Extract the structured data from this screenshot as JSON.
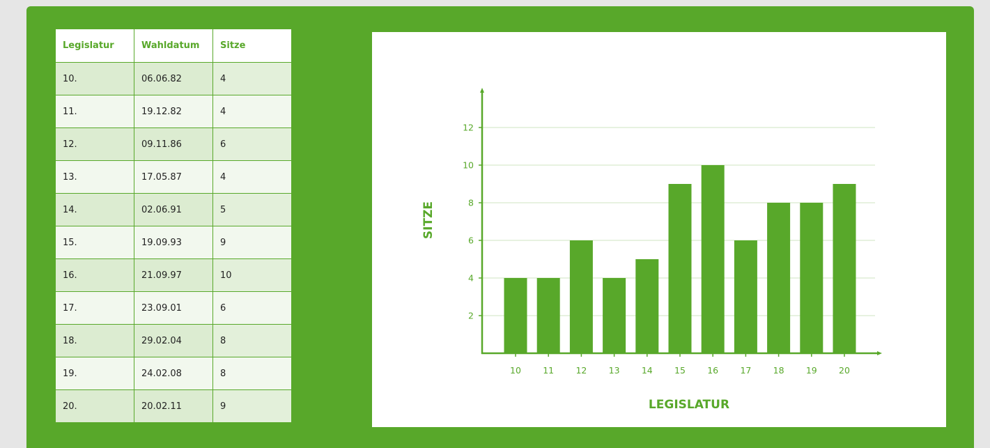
{
  "table": {
    "headers": [
      "Legislatur",
      "Wahldatum",
      "Sitze"
    ],
    "rows": [
      [
        "10.",
        "06.06.82",
        "4"
      ],
      [
        "11.",
        "19.12.82",
        "4"
      ],
      [
        "12.",
        "09.11.86",
        "6"
      ],
      [
        "13.",
        "17.05.87",
        "4"
      ],
      [
        "14.",
        "02.06.91",
        "5"
      ],
      [
        "15.",
        "19.09.93",
        "9"
      ],
      [
        "16.",
        "21.09.97",
        "10"
      ],
      [
        "17.",
        "23.09.01",
        "6"
      ],
      [
        "18.",
        "29.02.04",
        "8"
      ],
      [
        "19.",
        "24.02.08",
        "8"
      ],
      [
        "20.",
        "20.02.11",
        "9"
      ]
    ]
  },
  "colors": {
    "accent": "#58a82a",
    "gridline": "#cfe5c0",
    "panel_background": "#58a82a",
    "chart_background": "#ffffff"
  },
  "chart_data": {
    "type": "bar",
    "categories": [
      "10",
      "11",
      "12",
      "13",
      "14",
      "15",
      "16",
      "17",
      "18",
      "19",
      "20"
    ],
    "values": [
      4,
      4,
      6,
      4,
      5,
      9,
      10,
      6,
      8,
      8,
      9
    ],
    "xlabel": "LEGISLATUR",
    "ylabel": "SITZE",
    "ylim": [
      0,
      14
    ],
    "yticks": [
      2,
      4,
      6,
      8,
      10,
      12
    ],
    "grid": true,
    "legend": "none"
  }
}
